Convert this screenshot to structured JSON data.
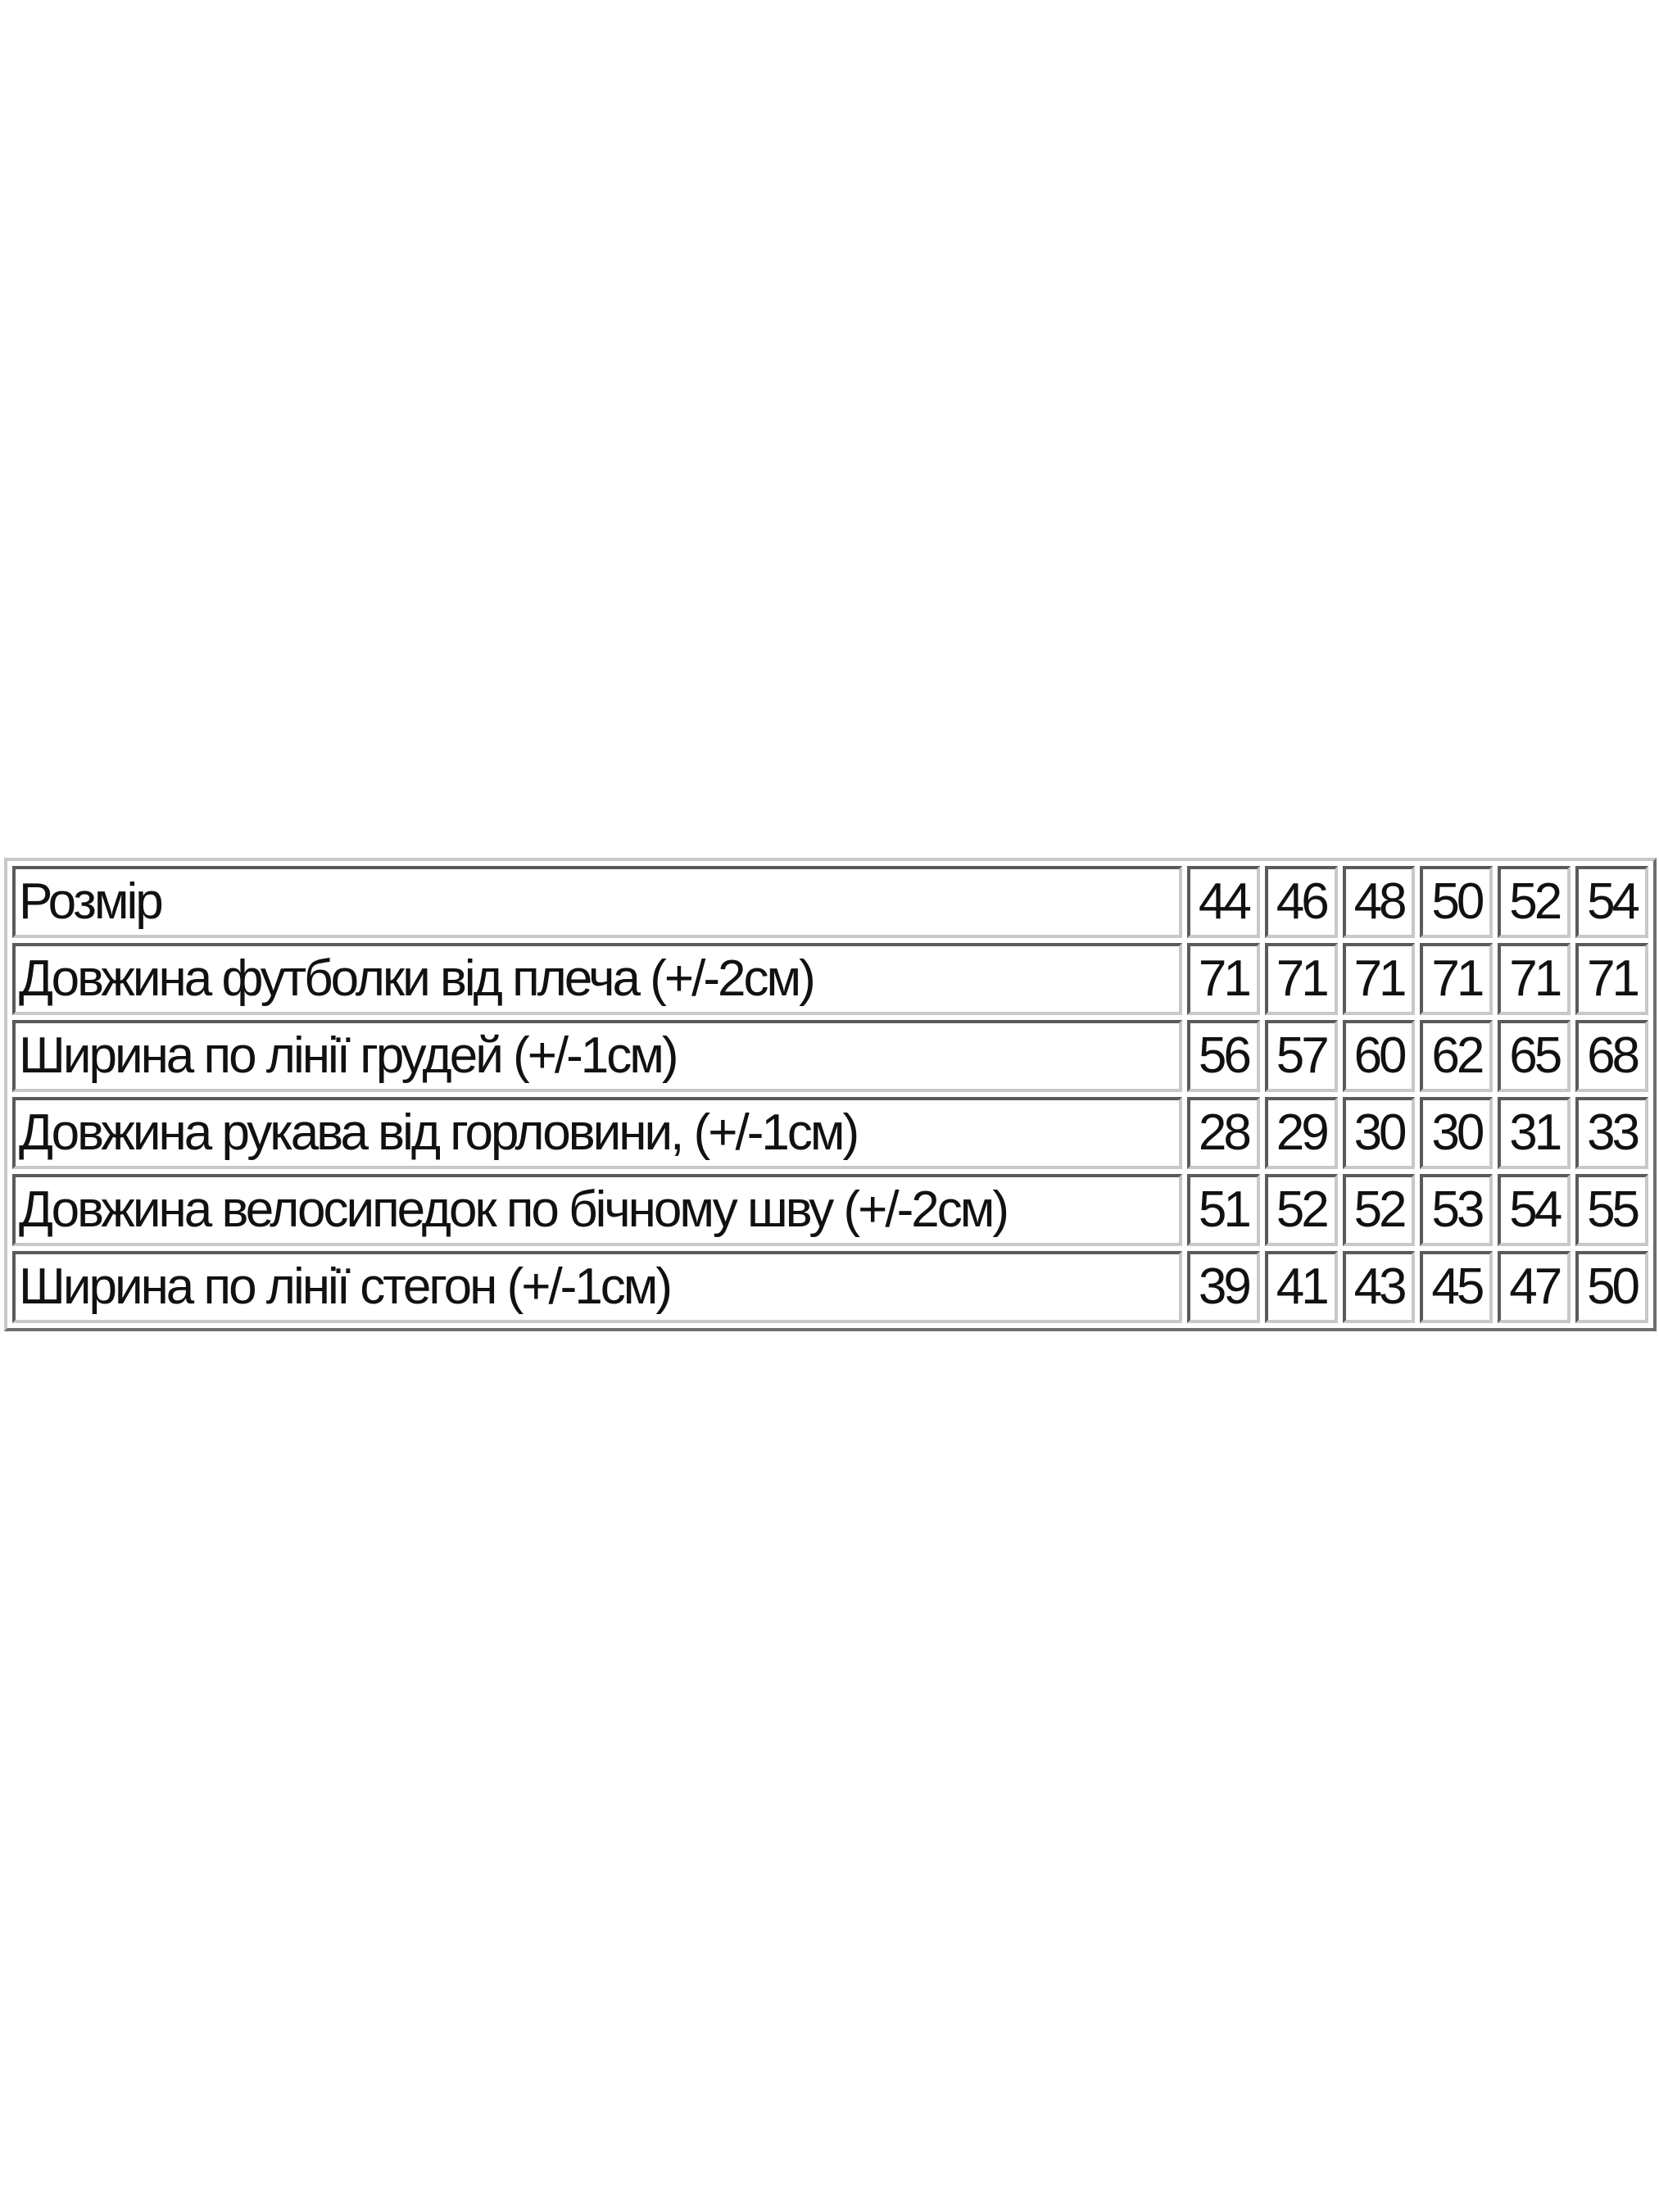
{
  "table": {
    "header": {
      "label": "Розмір",
      "sizes": [
        "44",
        "46",
        "48",
        "50",
        "52",
        "54"
      ]
    },
    "rows": [
      {
        "label": "Довжина футболки від плеча (+/-2см)",
        "values": [
          "71",
          "71",
          "71",
          "71",
          "71",
          "71"
        ]
      },
      {
        "label": "Ширина по лінії грудей (+/-1см)",
        "values": [
          "56",
          "57",
          "60",
          "62",
          "65",
          "68"
        ]
      },
      {
        "label": "Довжина рукава від горловини, (+/-1см)",
        "values": [
          "28",
          "29",
          "30",
          "30",
          "31",
          "33"
        ]
      },
      {
        "label": "Довжина велосипедок по бічному шву (+/-2см)",
        "values": [
          "51",
          "52",
          "52",
          "53",
          "54",
          "55"
        ]
      },
      {
        "label": "Ширина по лінії стегон (+/-1см)",
        "values": [
          "39",
          "41",
          "43",
          "45",
          "47",
          "50"
        ]
      }
    ]
  }
}
